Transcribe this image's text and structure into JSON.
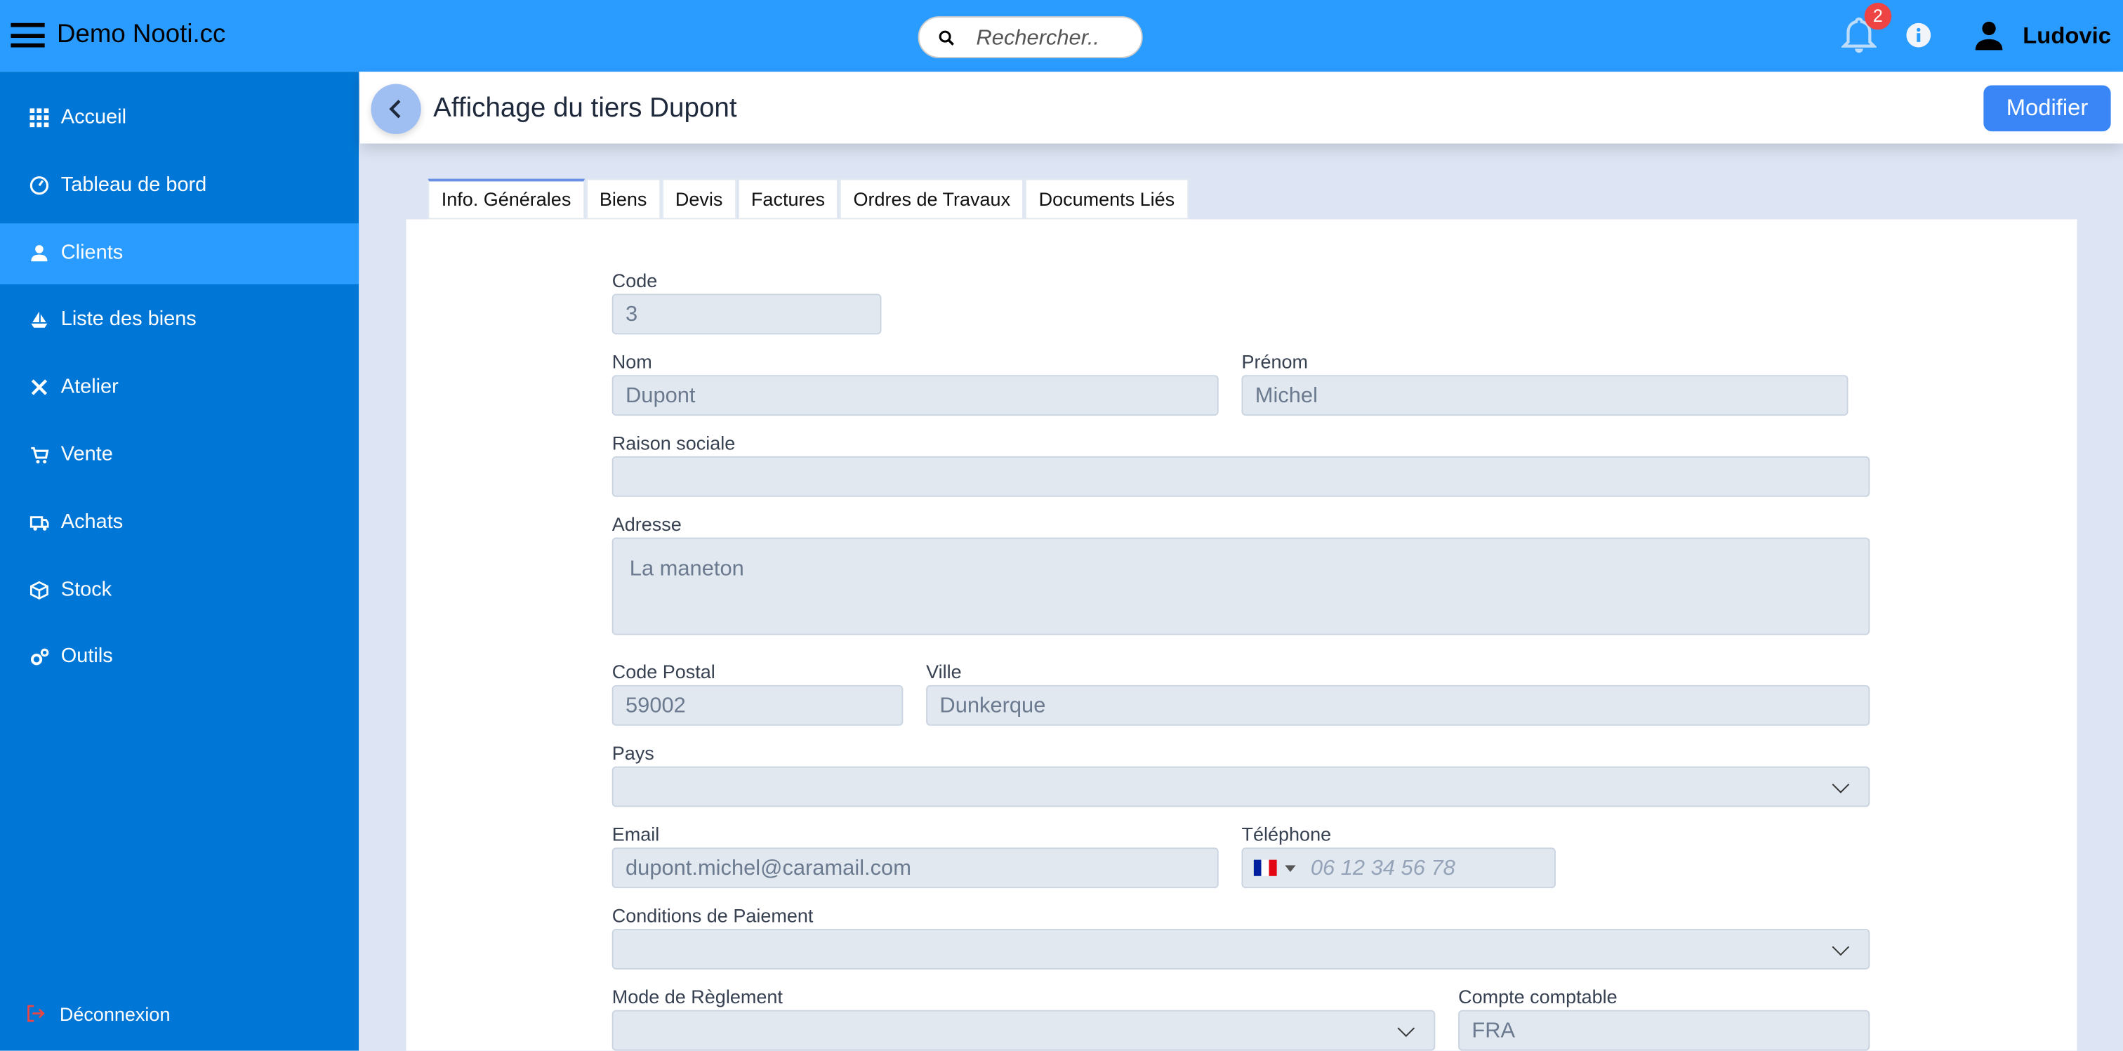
{
  "app": {
    "title": "Demo Nooti.cc",
    "search_placeholder": "Rechercher..",
    "notification_count": "2",
    "username": "Ludovic"
  },
  "sidebar": {
    "items": [
      {
        "label": "Accueil",
        "icon": "grid-icon"
      },
      {
        "label": "Tableau de bord",
        "icon": "dashboard-icon"
      },
      {
        "label": "Clients",
        "icon": "person-icon",
        "active": true
      },
      {
        "label": "Liste des biens",
        "icon": "boat-icon"
      },
      {
        "label": "Atelier",
        "icon": "tools-icon"
      },
      {
        "label": "Vente",
        "icon": "cart-icon"
      },
      {
        "label": "Achats",
        "icon": "truck-icon"
      },
      {
        "label": "Stock",
        "icon": "box-icon"
      },
      {
        "label": "Outils",
        "icon": "gears-icon"
      }
    ],
    "logout": "Déconnexion"
  },
  "page": {
    "title": "Affichage du tiers Dupont",
    "edit_button": "Modifier"
  },
  "tabs": [
    "Info. Générales",
    "Biens",
    "Devis",
    "Factures",
    "Ordres de Travaux",
    "Documents Liés"
  ],
  "form": {
    "code": {
      "label": "Code",
      "value": "3"
    },
    "nom": {
      "label": "Nom",
      "value": "Dupont"
    },
    "prenom": {
      "label": "Prénom",
      "value": "Michel"
    },
    "raison": {
      "label": "Raison sociale",
      "value": ""
    },
    "adresse": {
      "label": "Adresse",
      "value": "La maneton"
    },
    "cp": {
      "label": "Code Postal",
      "value": "59002"
    },
    "ville": {
      "label": "Ville",
      "value": "Dunkerque"
    },
    "pays": {
      "label": "Pays",
      "value": ""
    },
    "email": {
      "label": "Email",
      "value": "dupont.michel@caramail.com"
    },
    "tel": {
      "label": "Téléphone",
      "placeholder": "06 12 34 56 78",
      "country": "FR"
    },
    "conditions": {
      "label": "Conditions de Paiement",
      "value": ""
    },
    "mode": {
      "label": "Mode de Règlement",
      "value": ""
    },
    "compte": {
      "label": "Compte comptable",
      "value": "FRA"
    }
  }
}
